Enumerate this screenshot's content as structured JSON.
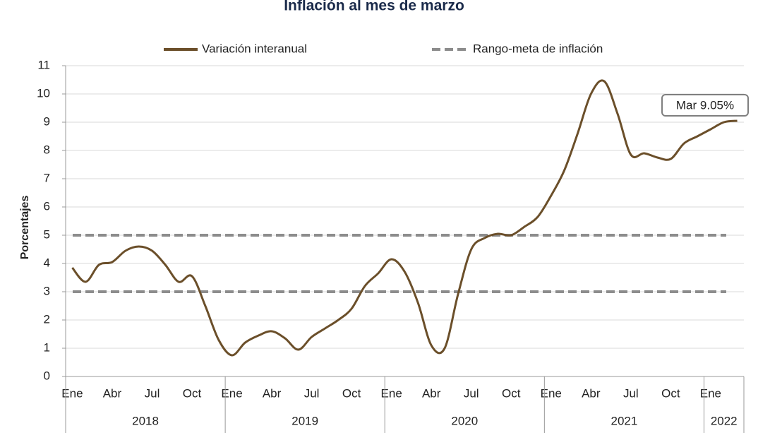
{
  "chart_data": {
    "type": "line",
    "title": "Inflación al mes de marzo",
    "y_label": "Porcentajes",
    "annotation": "Mar 9.05%",
    "categories": [
      "Ene",
      null,
      null,
      "Abr",
      null,
      null,
      "Jul",
      null,
      null,
      "Oct",
      null,
      null,
      "Ene",
      null,
      null,
      "Abr",
      null,
      null,
      "Jul",
      null,
      null,
      "Oct",
      null,
      null,
      "Ene",
      null,
      null,
      "Abr",
      null,
      null,
      "Jul",
      null,
      null,
      "Oct",
      null,
      null,
      "Ene",
      null,
      null,
      "Abr",
      null,
      null,
      "Jul",
      null,
      null,
      "Oct",
      null,
      null,
      "Ene",
      null,
      null
    ],
    "groups": [
      {
        "label": "2018",
        "count": 12
      },
      {
        "label": "2019",
        "count": 12
      },
      {
        "label": "2020",
        "count": 12
      },
      {
        "label": "2021",
        "count": 12
      },
      {
        "label": "2022",
        "count": 3
      }
    ],
    "series": [
      {
        "name": "Variación interanual",
        "color": "#6b4f2a",
        "values": [
          3.85,
          3.35,
          3.95,
          4.05,
          4.45,
          4.6,
          4.45,
          3.95,
          3.35,
          3.55,
          2.5,
          1.3,
          0.75,
          1.2,
          1.45,
          1.6,
          1.35,
          0.95,
          1.4,
          1.7,
          2.0,
          2.4,
          3.2,
          3.65,
          4.15,
          3.7,
          2.6,
          1.1,
          1.0,
          2.9,
          4.5,
          4.9,
          5.05,
          5.0,
          5.3,
          5.65,
          6.4,
          7.3,
          8.6,
          10.0,
          10.45,
          9.3,
          7.85,
          7.9,
          7.75,
          7.7,
          8.25,
          8.5,
          8.75,
          9.0,
          9.05
        ]
      }
    ],
    "target_range": {
      "name": "Rango-meta de inflación",
      "color": "#8c8c8c",
      "values": [
        3,
        5
      ]
    },
    "ylim": [
      0,
      11
    ],
    "yticks": [
      0,
      1,
      2,
      3,
      4,
      5,
      6,
      7,
      8,
      9,
      10,
      11
    ],
    "grid": true
  }
}
